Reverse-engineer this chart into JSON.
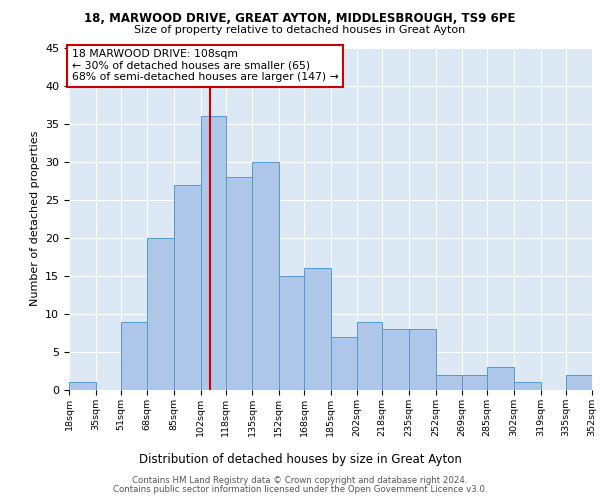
{
  "title1": "18, MARWOOD DRIVE, GREAT AYTON, MIDDLESBROUGH, TS9 6PE",
  "title2": "Size of property relative to detached houses in Great Ayton",
  "xlabel": "Distribution of detached houses by size in Great Ayton",
  "ylabel": "Number of detached properties",
  "footer1": "Contains HM Land Registry data © Crown copyright and database right 2024.",
  "footer2": "Contains public sector information licensed under the Open Government Licence v3.0.",
  "annotation_line1": "18 MARWOOD DRIVE: 108sqm",
  "annotation_line2": "← 30% of detached houses are smaller (65)",
  "annotation_line3": "68% of semi-detached houses are larger (147) →",
  "property_size": 108,
  "bin_edges": [
    18,
    35,
    51,
    68,
    85,
    102,
    118,
    135,
    152,
    168,
    185,
    202,
    218,
    235,
    252,
    269,
    285,
    302,
    319,
    335,
    352
  ],
  "bar_values": [
    1,
    0,
    9,
    20,
    27,
    36,
    28,
    30,
    15,
    16,
    7,
    9,
    8,
    8,
    2,
    2,
    3,
    1,
    0,
    2
  ],
  "bar_color": "#aec6e8",
  "bar_edge_color": "#5599cc",
  "vline_color": "#cc0000",
  "vline_x": 108,
  "ylim": [
    0,
    45
  ],
  "yticks": [
    0,
    5,
    10,
    15,
    20,
    25,
    30,
    35,
    40,
    45
  ],
  "annotation_box_color": "#ffffff",
  "annotation_box_edge": "#cc0000",
  "bg_color": "#dce9f5",
  "fig_bg_color": "#ffffff"
}
